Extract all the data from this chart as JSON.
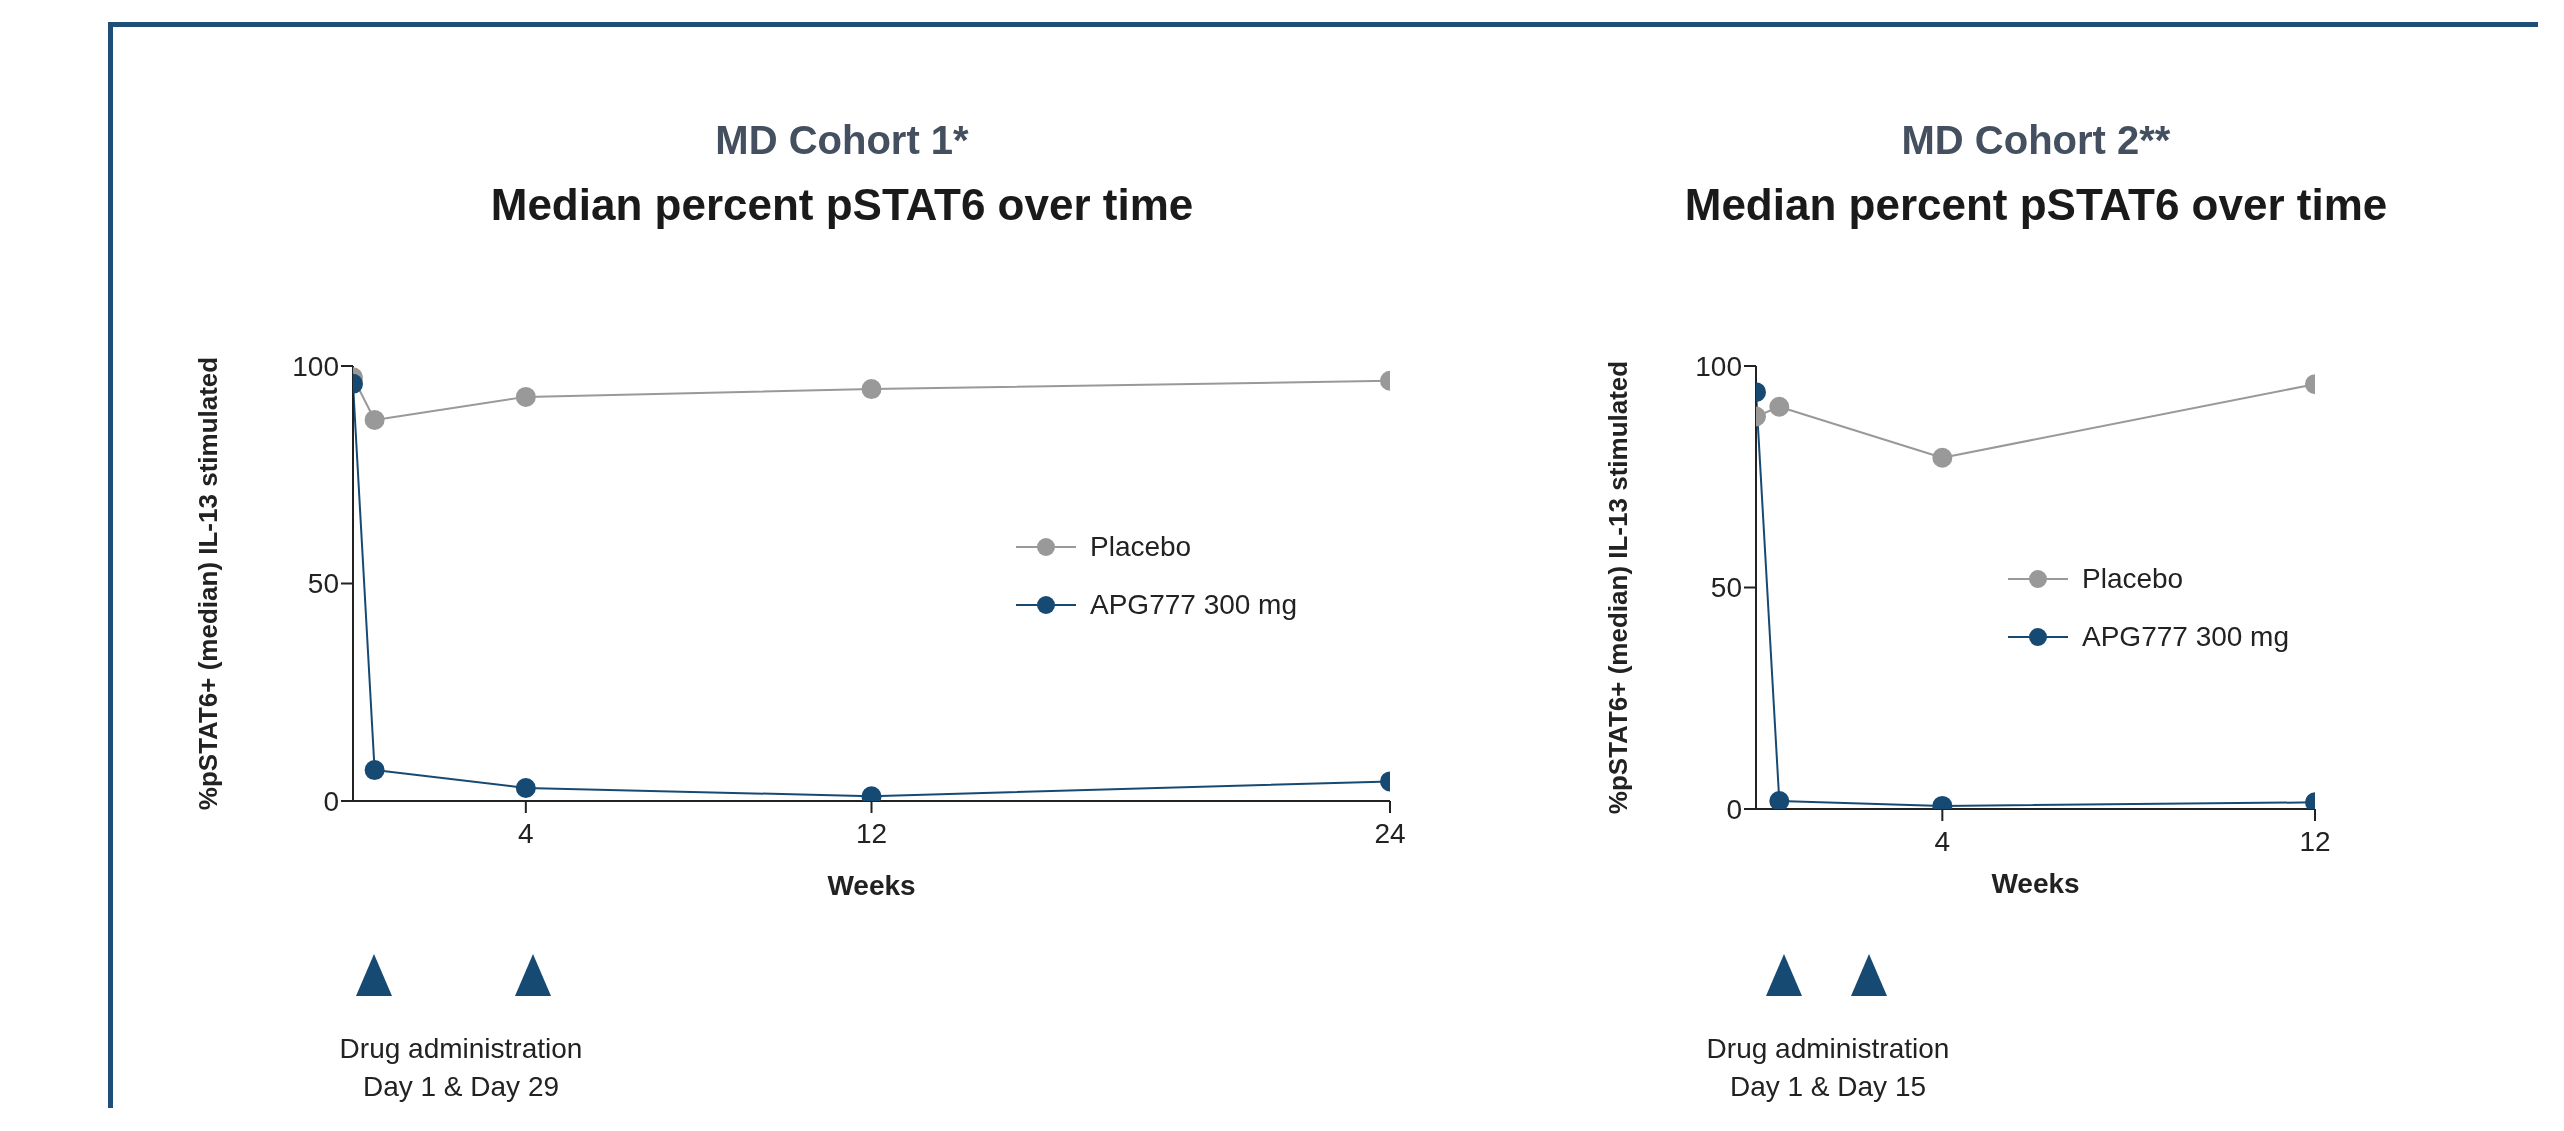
{
  "chart_data": [
    {
      "type": "line",
      "title": "MD Cohort 1*",
      "subtitle": "Median percent pSTAT6 over time",
      "xlabel": "Weeks",
      "ylabel": "%pSTAT6+ (median) IL-13 stimulated",
      "xlim": [
        0,
        24
      ],
      "xticks": [
        4,
        12,
        24
      ],
      "ylim": [
        0,
        100
      ],
      "yticks": [
        0,
        50,
        100
      ],
      "grid": false,
      "legend": "right",
      "marker": "circle",
      "line_style": "solid",
      "annotations": [
        "Drug administration Day 1 & Day 29"
      ],
      "series": [
        {
          "name": "Placebo",
          "color": "#999999",
          "x": [
            0,
            0.5,
            4,
            12,
            24
          ],
          "values": [
            97.4,
            87.6,
            92.9,
            94.7,
            96.6
          ]
        },
        {
          "name": "APG777 300 mg",
          "color": "#174a73",
          "x": [
            0,
            0.5,
            4,
            12,
            24
          ],
          "values": [
            95.9,
            7.1,
            3,
            1.1,
            4.5
          ]
        }
      ]
    },
    {
      "type": "line",
      "title": "MD Cohort 2**",
      "subtitle": "Median percent pSTAT6 over time",
      "xlabel": "Weeks",
      "ylabel": "%pSTAT6+ (median) IL-13 stimulated",
      "xlim": [
        0,
        12
      ],
      "xticks": [
        4,
        12
      ],
      "ylim": [
        0,
        100
      ],
      "yticks": [
        0,
        50,
        100
      ],
      "grid": false,
      "legend": "right",
      "marker": "circle",
      "line_style": "solid",
      "annotations": [
        "Drug administration Day 1 & Day 15"
      ],
      "series": [
        {
          "name": "Placebo",
          "color": "#999999",
          "x": [
            0,
            0.5,
            4,
            12
          ],
          "values": [
            88.6,
            90.8,
            79.3,
            95.9
          ]
        },
        {
          "name": "APG777 300 mg",
          "color": "#174a73",
          "x": [
            0,
            0.5,
            4,
            12
          ],
          "values": [
            94.1,
            1.8,
            0.7,
            1.5
          ]
        }
      ]
    }
  ]
}
